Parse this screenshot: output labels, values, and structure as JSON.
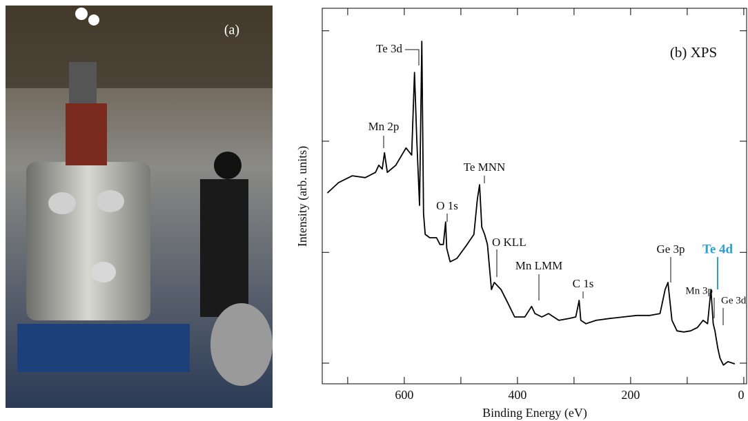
{
  "photo_label": "(a)",
  "chart_data": {
    "type": "line",
    "title": "(b) XPS",
    "x_label": "Binding Energy (eV)",
    "y_label": "Intensity (arb. units)",
    "xlim": [
      745,
      -5
    ],
    "xticks": [
      600,
      400,
      200,
      0
    ],
    "xminorticks": [
      700,
      500,
      300,
      100
    ],
    "ylim": [
      0,
      100
    ],
    "ytick_marks": [
      5.5,
      35,
      64.6,
      94
    ],
    "color": "#000000",
    "x": [
      736,
      716,
      692,
      669,
      651,
      645,
      639,
      635,
      630,
      615,
      597,
      587,
      582,
      578,
      573,
      569,
      566,
      563,
      555,
      543,
      537,
      531,
      527,
      525,
      519,
      507,
      489,
      477,
      471,
      467,
      463,
      458,
      453,
      446,
      441,
      429,
      417,
      405,
      387,
      375,
      369,
      357,
      345,
      327,
      309,
      297,
      291,
      288,
      279,
      261,
      237,
      213,
      189,
      166,
      148,
      139,
      134,
      127,
      118,
      106,
      94,
      82,
      72,
      64,
      58,
      54,
      51,
      46,
      42,
      36,
      28,
      16
    ],
    "values": [
      50.8,
      53.6,
      55.4,
      54.9,
      56.3,
      58.2,
      57.2,
      61.5,
      56.3,
      58.2,
      62.8,
      60.9,
      82.9,
      65.5,
      47.5,
      91.2,
      45.3,
      39.8,
      38.9,
      38.9,
      37.1,
      37.1,
      43.1,
      36.1,
      32.5,
      33.4,
      37.1,
      39.8,
      49.0,
      53.0,
      41.7,
      39.8,
      37.1,
      25.1,
      27.0,
      25.1,
      21.5,
      17.8,
      17.8,
      20.6,
      18.7,
      17.8,
      18.7,
      16.9,
      17.4,
      17.8,
      22.2,
      16.9,
      16.0,
      16.9,
      17.4,
      17.8,
      18.2,
      18.2,
      18.7,
      25.1,
      27.0,
      16.9,
      14.1,
      13.8,
      14.1,
      15.0,
      16.9,
      16.0,
      25.1,
      16.0,
      14.1,
      9.5,
      6.8,
      5.0,
      5.9,
      5.3
    ],
    "annotations": [
      {
        "text": "Te 3d"
      },
      {
        "text": "Mn 2p"
      },
      {
        "text": "Te MNN"
      },
      {
        "text": "O 1s"
      },
      {
        "text": "O KLL"
      },
      {
        "text": "Mn LMM"
      },
      {
        "text": "C 1s"
      },
      {
        "text": "Ge 3p"
      },
      {
        "text": "Te 4d",
        "color": "#2a9fd6",
        "bold": true
      },
      {
        "text": "Mn 3p"
      },
      {
        "text": "Ge 3d"
      }
    ]
  }
}
